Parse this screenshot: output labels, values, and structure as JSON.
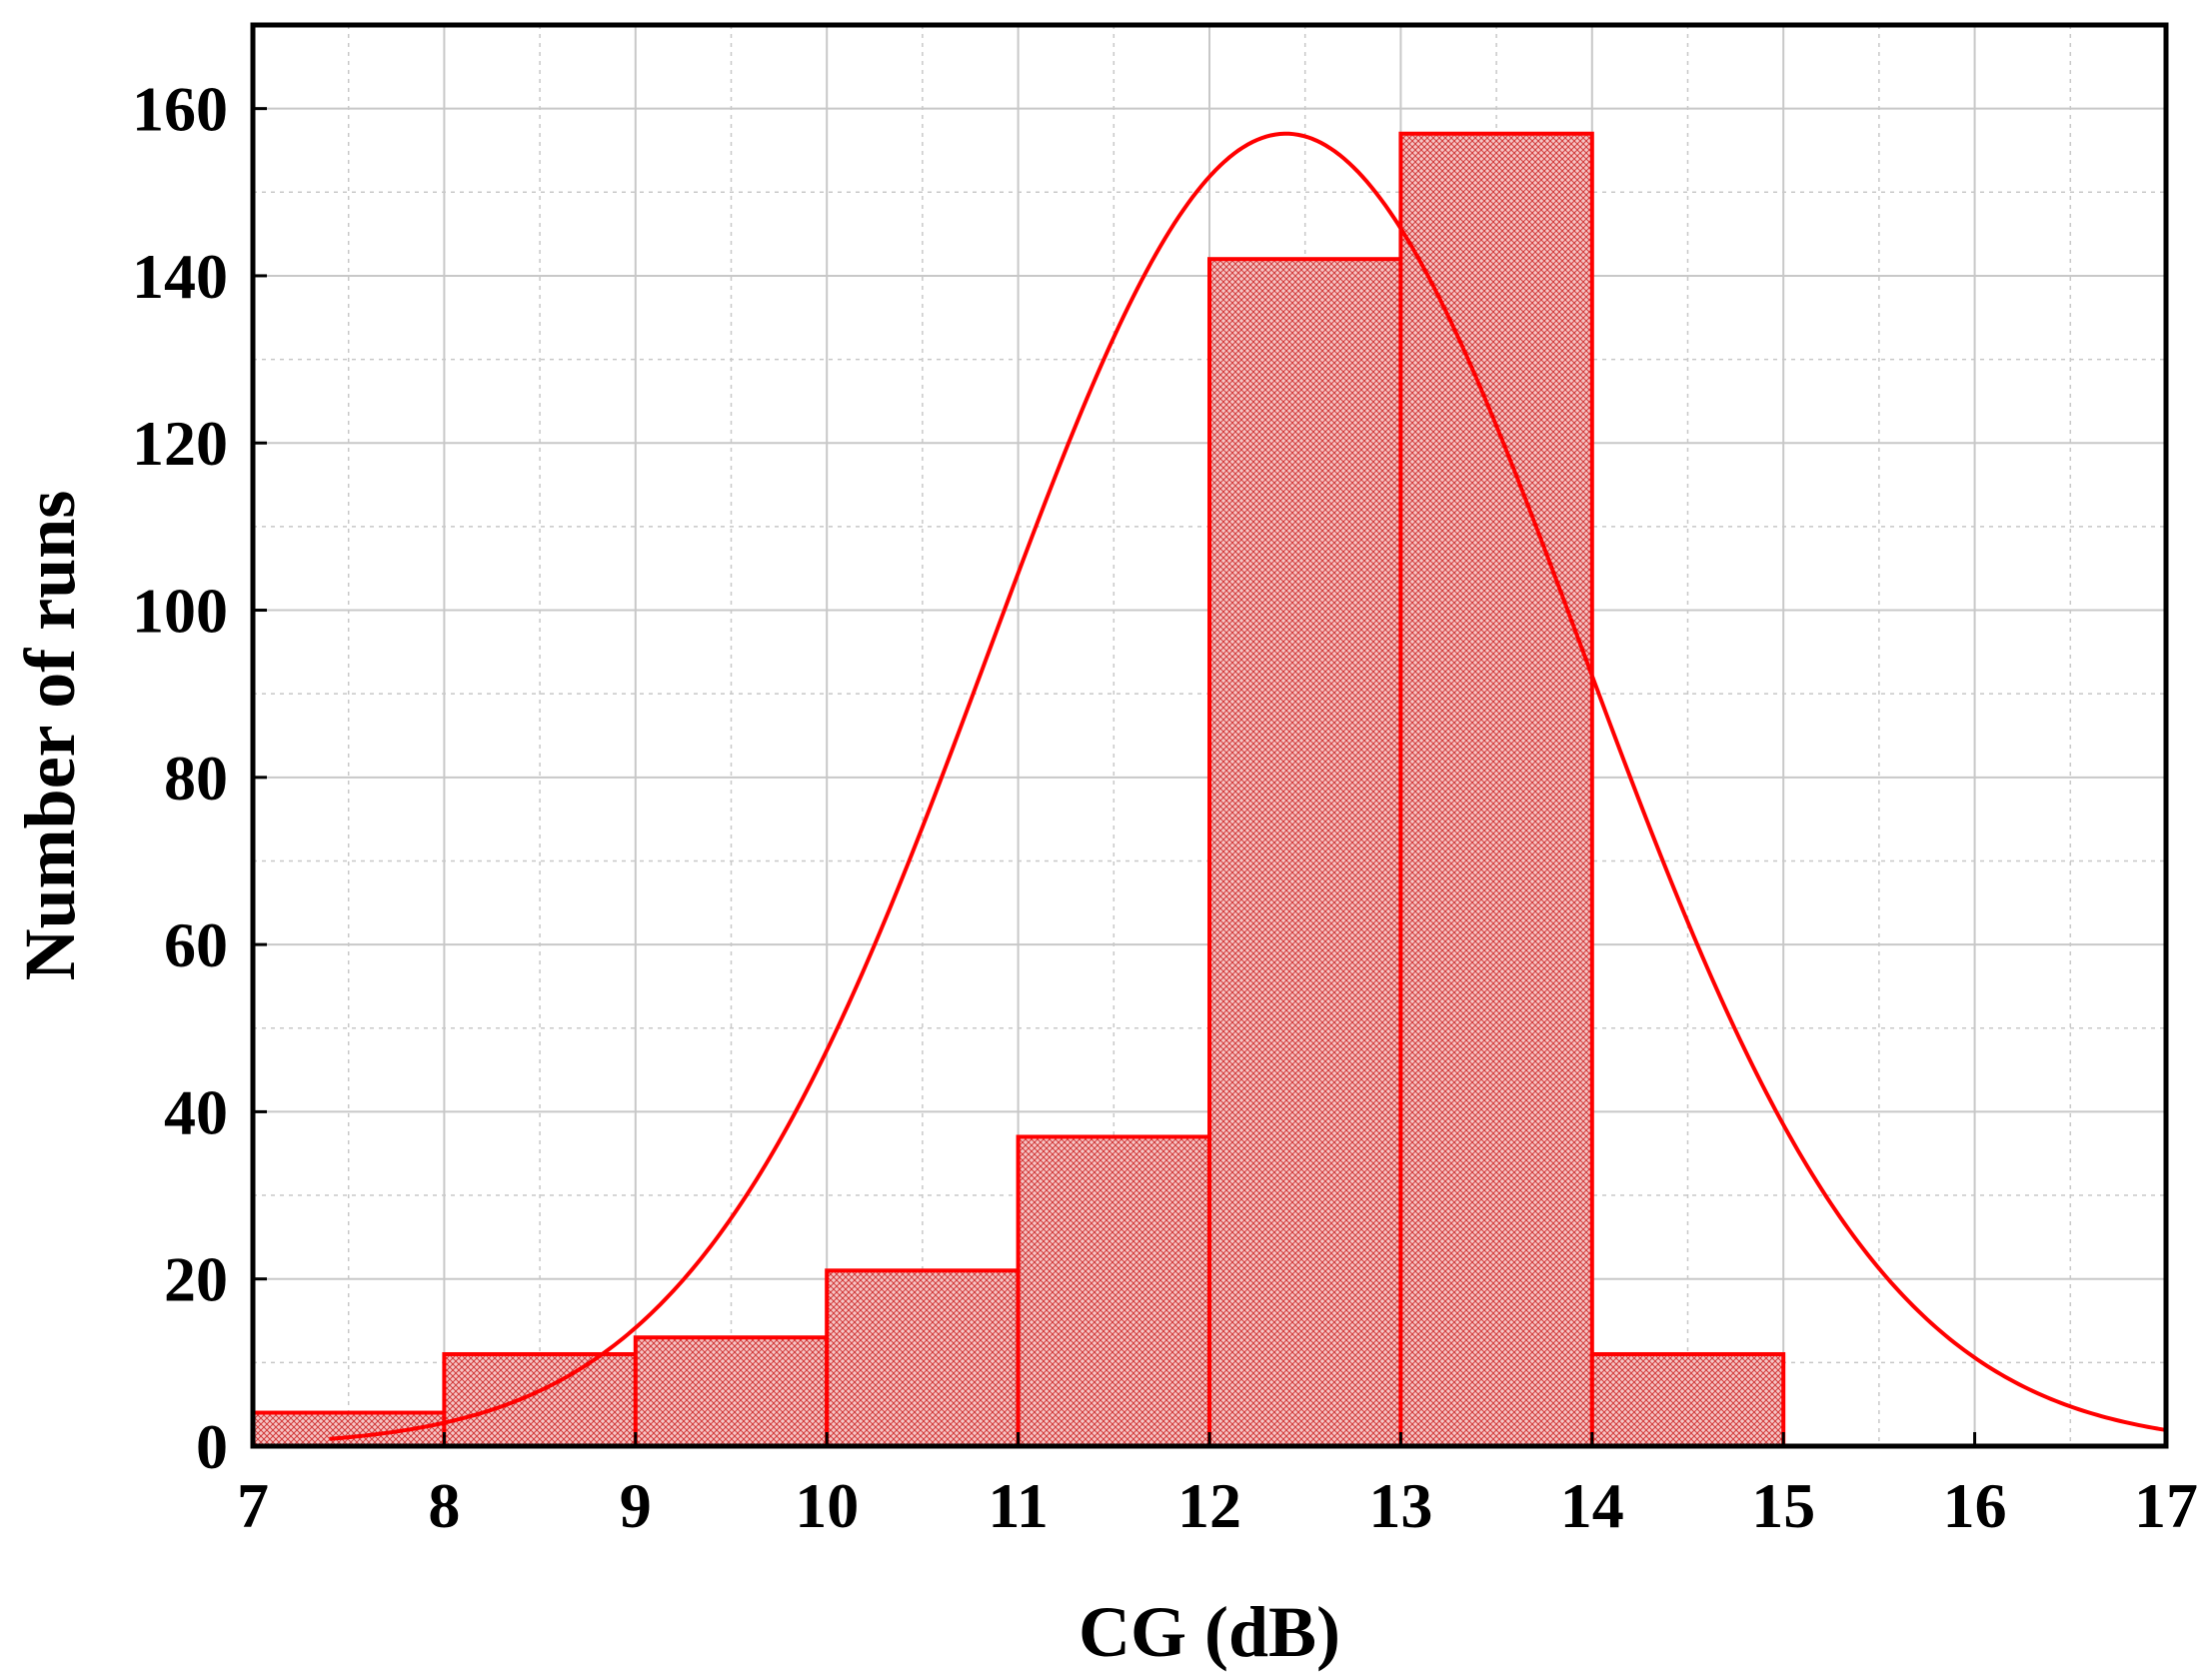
{
  "chart_data": {
    "type": "bar",
    "subtype": "histogram-with-fitted-normal-curve",
    "title": "",
    "xlabel": "CG (dB)",
    "ylabel": "Number of runs",
    "xlim": [
      7,
      17
    ],
    "ylim": [
      0,
      170
    ],
    "x_ticks": [
      "7",
      "8",
      "9",
      "10",
      "11",
      "12",
      "13",
      "14",
      "15",
      "16",
      "17"
    ],
    "y_ticks": [
      "0",
      "20",
      "40",
      "60",
      "80",
      "100",
      "120",
      "140",
      "160"
    ],
    "grid": true,
    "grid_minor": true,
    "bins": [
      {
        "x0": 7,
        "x1": 8,
        "count": 4
      },
      {
        "x0": 8,
        "x1": 9,
        "count": 11
      },
      {
        "x0": 9,
        "x1": 10,
        "count": 13
      },
      {
        "x0": 10,
        "x1": 11,
        "count": 21
      },
      {
        "x0": 11,
        "x1": 12,
        "count": 37
      },
      {
        "x0": 12,
        "x1": 13,
        "count": 142
      },
      {
        "x0": 13,
        "x1": 14,
        "count": 157
      },
      {
        "x0": 14,
        "x1": 15,
        "count": 11
      }
    ],
    "fit_curve": {
      "type": "normal",
      "mean": 12.4,
      "sd": 1.55,
      "peak": 157,
      "x_range": [
        7.4,
        17
      ]
    },
    "colors": {
      "bar_stroke": "#ff0000",
      "bar_fill": "#f2b8b8",
      "curve": "#ff0000",
      "grid": "#c8c8c8",
      "axis": "#000000"
    }
  }
}
